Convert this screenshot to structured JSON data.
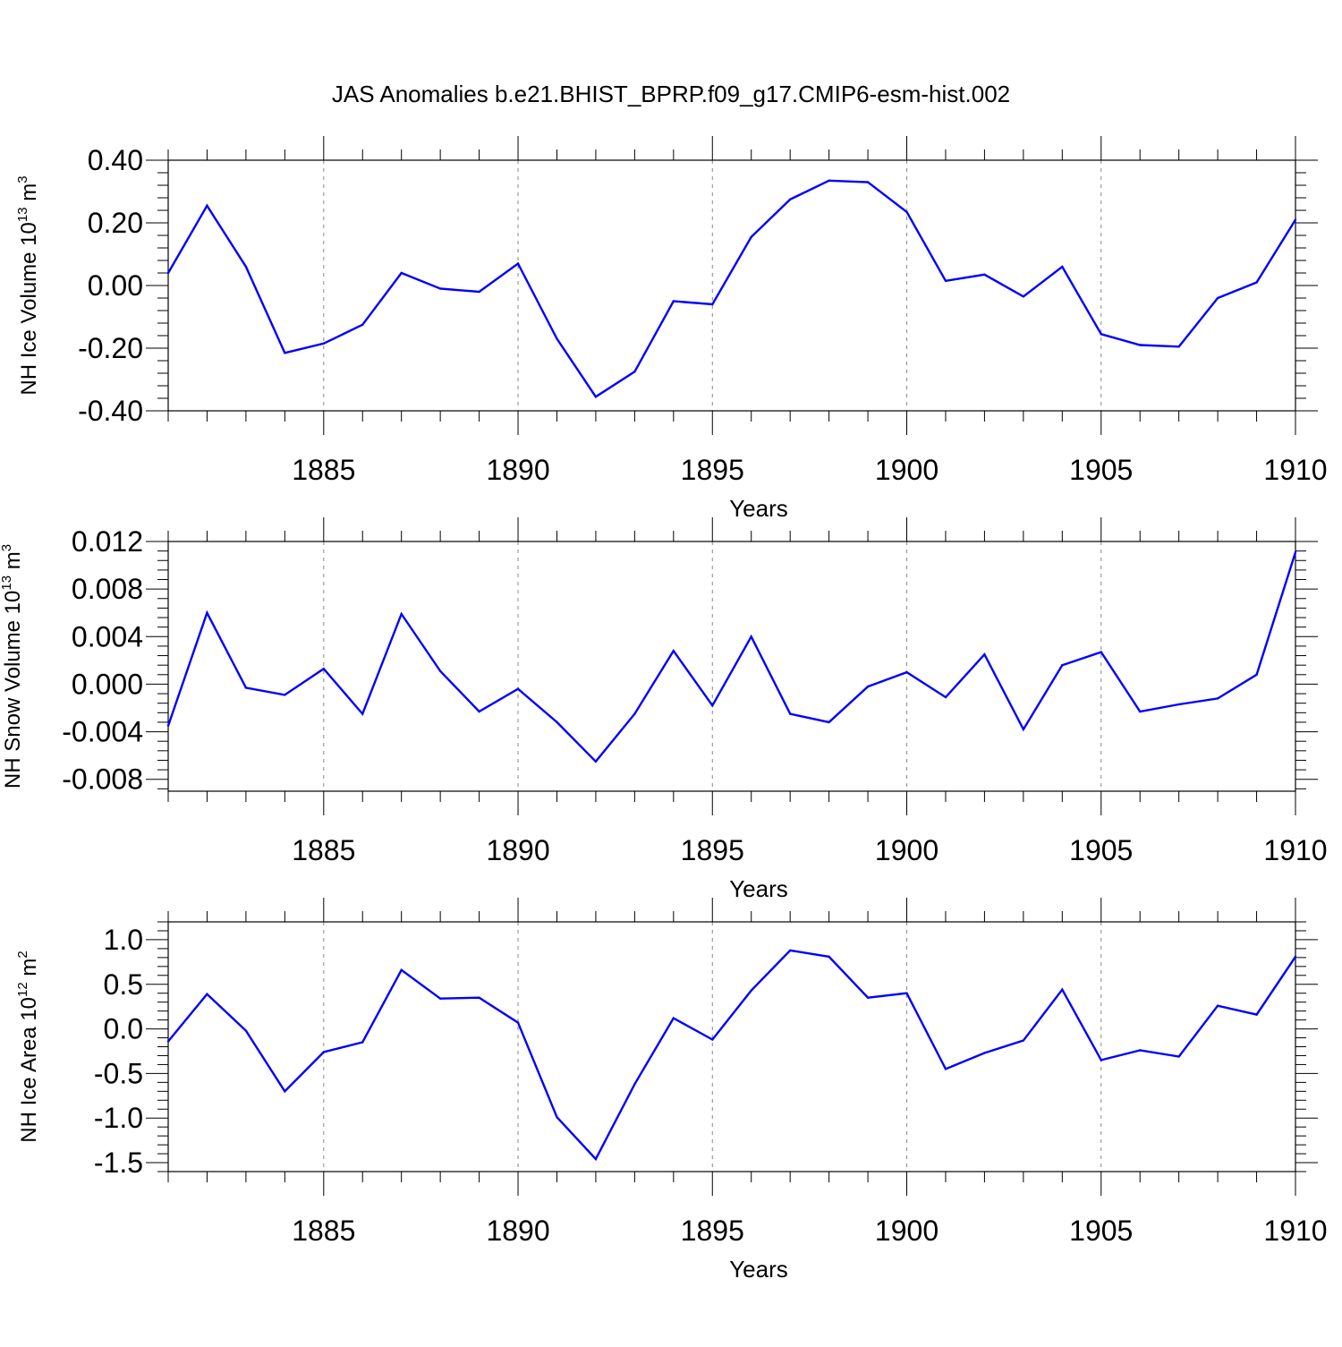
{
  "title": "JAS Anomalies b.e21.BHIST_BPRP.f09_g17.CMIP6-esm-hist.002",
  "chart_data": [
    {
      "type": "line",
      "xlabel": "Years",
      "ylabel": "NH Ice Volume 10",
      "ylabel_sup": "13",
      "ylabel_unit": "m",
      "ylabel_unit_sup": "3",
      "xlim": [
        1881,
        1910
      ],
      "ylim": [
        -0.4,
        0.4
      ],
      "xticks": [
        1885,
        1890,
        1895,
        1900,
        1905,
        1910
      ],
      "yticks": [
        -0.4,
        -0.2,
        0.0,
        0.2,
        0.4
      ],
      "ytick_labels": [
        "-0.40",
        "-0.20",
        "0.00",
        "0.20",
        "0.40"
      ],
      "color": "#0000ff",
      "x": [
        1881,
        1882,
        1883,
        1884,
        1885,
        1886,
        1887,
        1888,
        1889,
        1890,
        1891,
        1892,
        1893,
        1894,
        1895,
        1896,
        1897,
        1898,
        1899,
        1900,
        1901,
        1902,
        1903,
        1904,
        1905,
        1906,
        1907,
        1908,
        1909,
        1910
      ],
      "values": [
        0.04,
        0.255,
        0.06,
        -0.215,
        -0.185,
        -0.125,
        0.04,
        -0.01,
        -0.02,
        0.07,
        -0.17,
        -0.355,
        -0.275,
        -0.05,
        -0.06,
        0.155,
        0.275,
        0.335,
        0.33,
        0.235,
        0.015,
        0.035,
        -0.035,
        0.06,
        -0.155,
        -0.19,
        -0.195,
        -0.04,
        0.01,
        0.21
      ]
    },
    {
      "type": "line",
      "xlabel": "Years",
      "ylabel": "NH Snow Volume 10",
      "ylabel_sup": "13",
      "ylabel_unit": "m",
      "ylabel_unit_sup": "3",
      "xlim": [
        1881,
        1910
      ],
      "ylim": [
        -0.009,
        0.012
      ],
      "xticks": [
        1885,
        1890,
        1895,
        1900,
        1905,
        1910
      ],
      "yticks": [
        -0.008,
        -0.004,
        0.0,
        0.004,
        0.008,
        0.012
      ],
      "ytick_labels": [
        "-0.008",
        "-0.004",
        "0.000",
        "0.004",
        "0.008",
        "0.012"
      ],
      "color": "#0000ff",
      "x": [
        1881,
        1882,
        1883,
        1884,
        1885,
        1886,
        1887,
        1888,
        1889,
        1890,
        1891,
        1892,
        1893,
        1894,
        1895,
        1896,
        1897,
        1898,
        1899,
        1900,
        1901,
        1902,
        1903,
        1904,
        1905,
        1906,
        1907,
        1908,
        1909,
        1910
      ],
      "values": [
        -0.0035,
        0.006,
        -0.0003,
        -0.0009,
        0.0013,
        -0.0025,
        0.0059,
        0.0011,
        -0.0023,
        -0.0004,
        -0.0032,
        -0.0065,
        -0.0025,
        0.0028,
        -0.0018,
        0.004,
        -0.0025,
        -0.0032,
        -0.0002,
        0.001,
        -0.0011,
        0.0025,
        -0.0038,
        0.0016,
        0.0027,
        -0.0023,
        -0.0017,
        -0.0012,
        0.0008,
        0.0111
      ]
    },
    {
      "type": "line",
      "xlabel": "Years",
      "ylabel": "NH Ice Area 10",
      "ylabel_sup": "12",
      "ylabel_unit": "m",
      "ylabel_unit_sup": "2",
      "xlim": [
        1881,
        1910
      ],
      "ylim": [
        -1.6,
        1.2
      ],
      "xticks": [
        1885,
        1890,
        1895,
        1900,
        1905,
        1910
      ],
      "yticks": [
        -1.5,
        -1.0,
        -0.5,
        0.0,
        0.5,
        1.0
      ],
      "ytick_labels": [
        "-1.5",
        "-1.0",
        "-0.5",
        "0.0",
        "0.5",
        "1.0"
      ],
      "color": "#0000ff",
      "x": [
        1881,
        1882,
        1883,
        1884,
        1885,
        1886,
        1887,
        1888,
        1889,
        1890,
        1891,
        1892,
        1893,
        1894,
        1895,
        1896,
        1897,
        1898,
        1899,
        1900,
        1901,
        1902,
        1903,
        1904,
        1905,
        1906,
        1907,
        1908,
        1909,
        1910
      ],
      "values": [
        -0.14,
        0.39,
        -0.02,
        -0.7,
        -0.26,
        -0.15,
        0.66,
        0.34,
        0.35,
        0.07,
        -0.99,
        -1.46,
        -0.62,
        0.12,
        -0.12,
        0.43,
        0.88,
        0.81,
        0.35,
        0.4,
        -0.45,
        -0.27,
        -0.13,
        0.44,
        -0.35,
        -0.24,
        -0.31,
        0.26,
        0.16,
        0.81
      ]
    }
  ]
}
